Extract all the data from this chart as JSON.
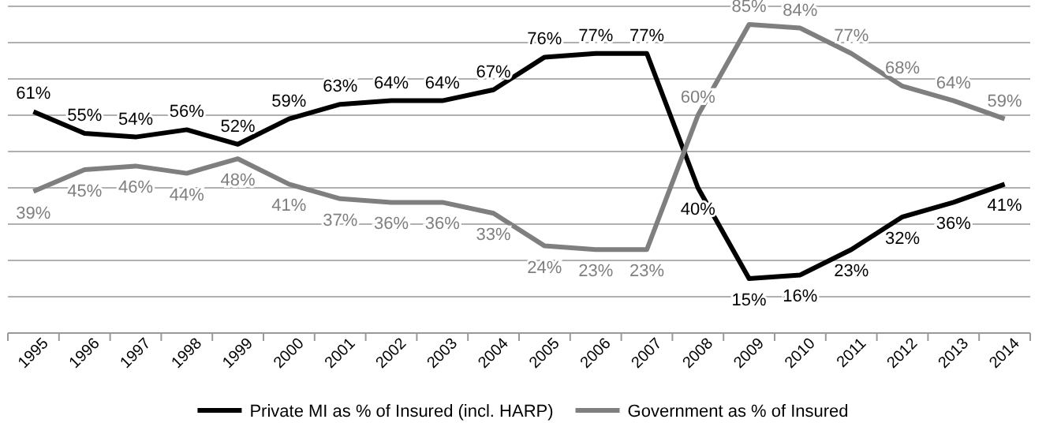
{
  "chart_data": {
    "type": "line",
    "categories": [
      "1995",
      "1996",
      "1997",
      "1998",
      "1999",
      "2000",
      "2001",
      "2002",
      "2003",
      "2004",
      "2005",
      "2006",
      "2007",
      "2008",
      "2009",
      "2010",
      "2011",
      "2012",
      "2013",
      "2014"
    ],
    "series": [
      {
        "name": "Private MI as % of Insured (incl. HARP)",
        "color": "#000000",
        "values": [
          61,
          55,
          54,
          56,
          52,
          59,
          63,
          64,
          64,
          67,
          76,
          77,
          77,
          40,
          15,
          16,
          23,
          32,
          36,
          41
        ],
        "value_labels": [
          "61%",
          "55%",
          "54%",
          "56%",
          "52%",
          "59%",
          "63%",
          "64%",
          "64%",
          "67%",
          "76%",
          "77%",
          "77%",
          "40%",
          "15%",
          "16%",
          "23%",
          "32%",
          "36%",
          "41%"
        ]
      },
      {
        "name": "Government as % of Insured",
        "color": "#7f7f7f",
        "values": [
          39,
          45,
          46,
          44,
          48,
          41,
          37,
          36,
          36,
          33,
          24,
          23,
          23,
          60,
          85,
          84,
          77,
          68,
          64,
          59
        ],
        "value_labels": [
          "39%",
          "45%",
          "46%",
          "44%",
          "48%",
          "41%",
          "37%",
          "36%",
          "36%",
          "33%",
          "24%",
          "23%",
          "23%",
          "60%",
          "85%",
          "84%",
          "77%",
          "68%",
          "64%",
          "59%"
        ]
      }
    ],
    "ylim": [
      0,
      90
    ],
    "yticks": [
      {
        "value": 0,
        "label": null
      },
      {
        "value": 10,
        "label": null
      },
      {
        "value": 20,
        "label": null
      },
      {
        "value": 30,
        "label": null
      },
      {
        "value": 40,
        "label": null
      },
      {
        "value": 50,
        "label": null
      },
      {
        "value": 60,
        "label": null
      },
      {
        "value": 70,
        "label": null
      },
      {
        "value": 80,
        "label": null
      },
      {
        "value": 90,
        "label": null
      }
    ],
    "grid": "y",
    "legend": "bottom",
    "marker": "none",
    "line_style": "solid",
    "tick_labels": "x"
  }
}
